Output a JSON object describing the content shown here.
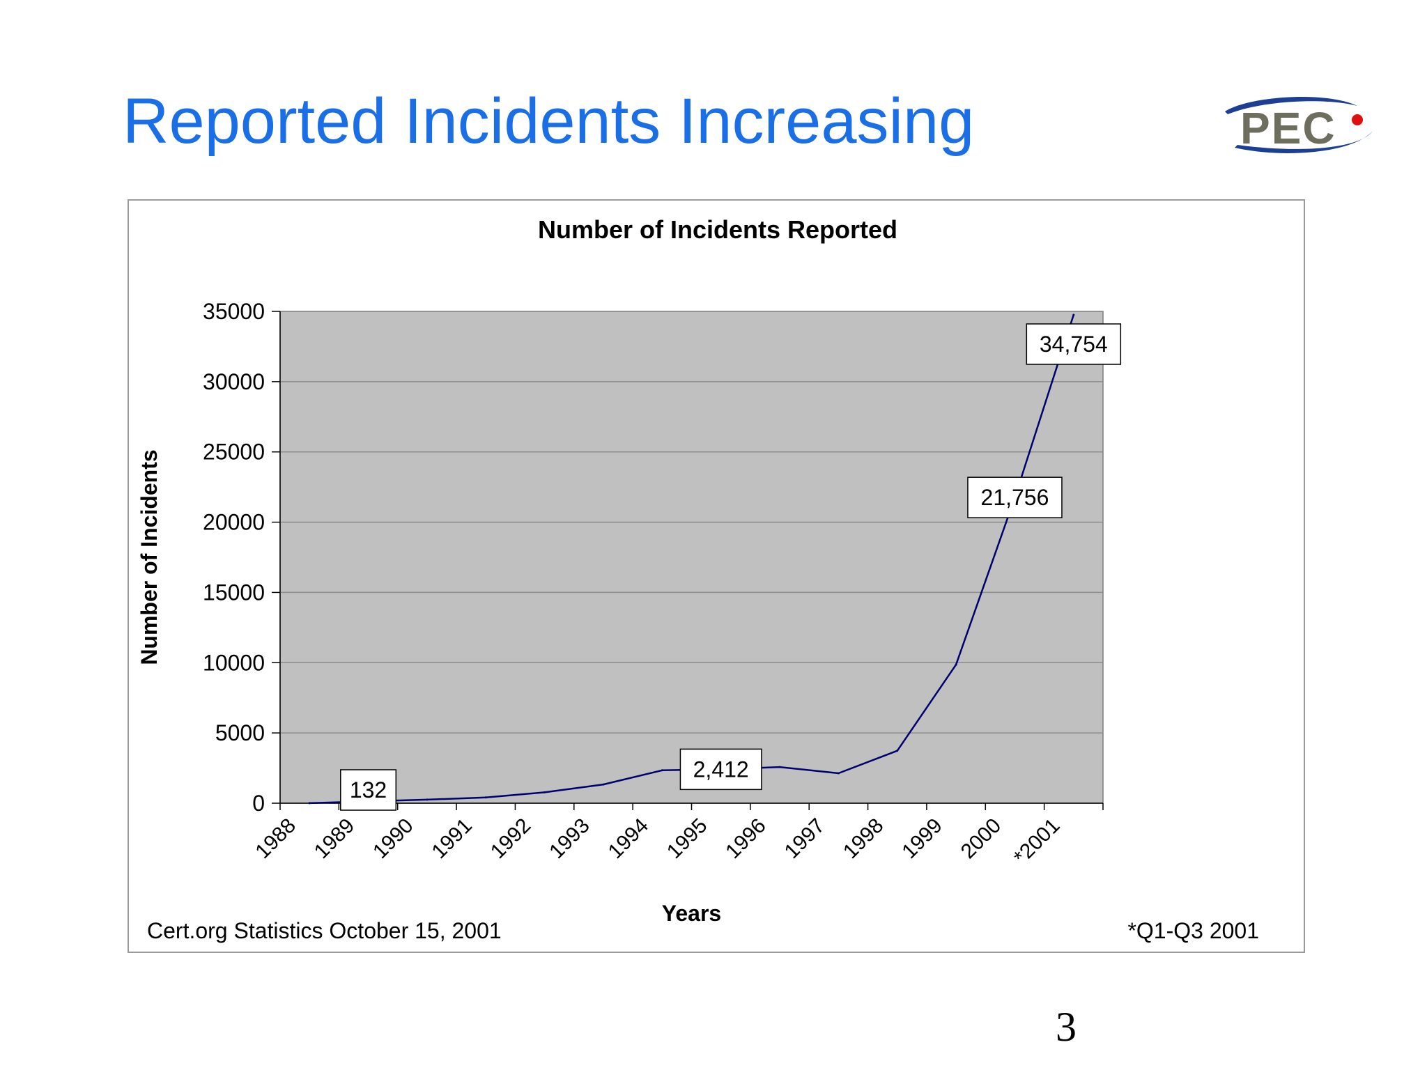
{
  "slide": {
    "title": "Reported Incidents Increasing",
    "page_number": "3",
    "title_color": "#1a6fe6",
    "logo": {
      "icon": "pec-logo",
      "text": "PEC"
    }
  },
  "chart_data": {
    "type": "line",
    "title": "Number of Incidents Reported",
    "xlabel": "Years",
    "ylabel": "Number of Incidents",
    "categories": [
      "1988",
      "1989",
      "1990",
      "1991",
      "1992",
      "1993",
      "1994",
      "1995",
      "1996",
      "1997",
      "1998",
      "1999",
      "2000",
      "*2001"
    ],
    "series": [
      {
        "values": [
          6,
          132,
          252,
          406,
          773,
          1334,
          2340,
          2412,
          2573,
          2134,
          3734,
          9859,
          21756,
          34754
        ]
      }
    ],
    "ylim": [
      0,
      35000
    ],
    "yticks": [
      0,
      5000,
      10000,
      15000,
      20000,
      25000,
      30000,
      35000
    ],
    "grid": true,
    "legend": "none",
    "plot_background": "#c0c0c0",
    "line_color": "#00006e",
    "callouts": [
      {
        "index": 1,
        "text": "132"
      },
      {
        "index": 7,
        "text": "2,412"
      },
      {
        "index": 12,
        "text": "21,756"
      },
      {
        "index": 13,
        "text": "34,754"
      }
    ],
    "source_note": "Cert.org Statistics October 15, 2001",
    "footnote": "*Q1-Q3 2001"
  }
}
